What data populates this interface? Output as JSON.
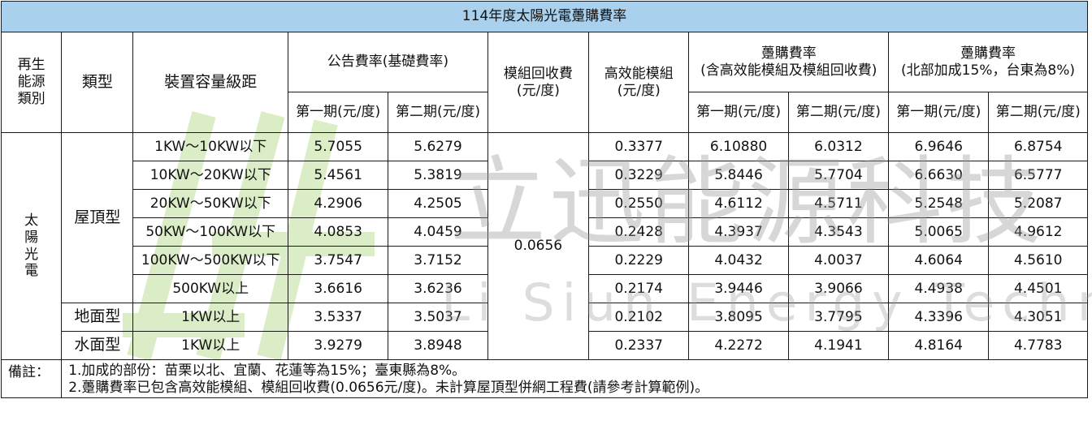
{
  "title": "114年度太陽光電躉購費率",
  "headers": {
    "energy_category": "再生\n能源\n類別",
    "type": "類型",
    "capacity": "裝置容量級距",
    "announced_rate": "公告費率(基礎費率)",
    "module_recycling": "模組回收費\n(元/度)",
    "high_eff_module": "高效能模組\n(元/度)",
    "purchase_rate": "躉購費率\n(含高效能模組及模組回收費)",
    "north_rate": "躉購費率\n(北部加成15%，台東為8%)",
    "period1": "第一期(元/度)",
    "period2": "第二期(元/度)"
  },
  "energy_type": "太\n陽\n光\n電",
  "module_recycling_fee": "0.0656",
  "groups": [
    {
      "type": "屋頂型"
    },
    {
      "type": "地面型"
    },
    {
      "type": "水面型"
    }
  ],
  "rows": [
    {
      "capacity": "1KW～10KW以下",
      "base1": "5.7055",
      "base2": "5.6279",
      "high_eff": "0.3377",
      "buy1": "6.10880",
      "buy2": "6.0312",
      "north1": "6.9646",
      "north2": "6.8754"
    },
    {
      "capacity": "10KW～20KW以下",
      "base1": "5.4561",
      "base2": "5.3819",
      "high_eff": "0.3229",
      "buy1": "5.8446",
      "buy2": "5.7704",
      "north1": "6.6630",
      "north2": "6.5777"
    },
    {
      "capacity": "20KW～50KW以下",
      "base1": "4.2906",
      "base2": "4.2505",
      "high_eff": "0.2550",
      "buy1": "4.6112",
      "buy2": "4.5711",
      "north1": "5.2548",
      "north2": "5.2087"
    },
    {
      "capacity": "50KW～100KW以下",
      "base1": "4.0853",
      "base2": "4.0459",
      "high_eff": "0.2428",
      "buy1": "4.3937",
      "buy2": "4.3543",
      "north1": "5.0065",
      "north2": "4.9612"
    },
    {
      "capacity": "100KW～500KW以下",
      "base1": "3.7547",
      "base2": "3.7152",
      "high_eff": "0.2229",
      "buy1": "4.0432",
      "buy2": "4.0037",
      "north1": "4.6064",
      "north2": "4.5610"
    },
    {
      "capacity": "500KW以上",
      "base1": "3.6616",
      "base2": "3.6236",
      "high_eff": "0.2174",
      "buy1": "3.9446",
      "buy2": "3.9066",
      "north1": "4.4938",
      "north2": "4.4501"
    },
    {
      "capacity": "1KW以上",
      "base1": "3.5337",
      "base2": "3.5037",
      "high_eff": "0.2102",
      "buy1": "3.8095",
      "buy2": "3.7795",
      "north1": "4.3396",
      "north2": "4.3051"
    },
    {
      "capacity": "1KW以上",
      "base1": "3.9279",
      "base2": "3.8948",
      "high_eff": "0.2337",
      "buy1": "4.2272",
      "buy2": "4.1941",
      "north1": "4.8164",
      "north2": "4.7783"
    }
  ],
  "notes": {
    "label": "備註：",
    "line1": "1.加成的部份：苗栗以北、宜蘭、花蓮等為15%；臺東縣為8%。",
    "line2": "2.躉購費率已包含高效能模組、模組回收費(0.0656元/度)。未計算屋頂型併網工程費(請參考計算範例)。"
  },
  "watermark": {
    "chinese": "立迅能源科技",
    "english": "Li Siun Energy Technology",
    "logo_color": "#8dc63f"
  },
  "colors": {
    "title_background": "#a9d0ec",
    "border": "#1a1a1a"
  }
}
